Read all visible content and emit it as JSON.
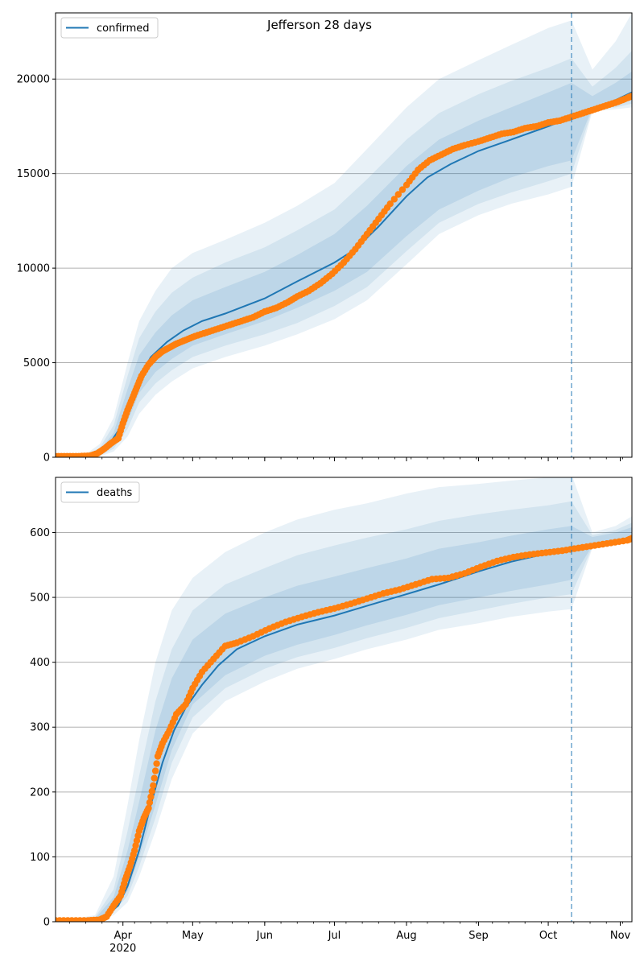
{
  "title": "Jefferson 28 days",
  "colors": {
    "model": "#1f77b4",
    "observed": "#ff7f0e",
    "band": "#1f77b4",
    "grid": "#b0b0b0"
  },
  "chart_data": [
    {
      "type": "line",
      "title": "Jefferson 28 days",
      "legend": [
        "confirmed"
      ],
      "legend_placement": "top-left",
      "grid": "horizontal",
      "xlabel": "",
      "ylabel": "",
      "ylim": [
        0,
        23500
      ],
      "yticks": [
        0,
        5000,
        10000,
        15000,
        20000
      ],
      "xlim": [
        "2020-03-03",
        "2020-11-06"
      ],
      "xticks": [
        {
          "date": "2020-04-01",
          "label": "Apr"
        },
        {
          "date": "2020-05-01",
          "label": "May"
        },
        {
          "date": "2020-06-01",
          "label": "Jun"
        },
        {
          "date": "2020-07-01",
          "label": "Jul"
        },
        {
          "date": "2020-08-01",
          "label": "Aug"
        },
        {
          "date": "2020-09-01",
          "label": "Sep"
        },
        {
          "date": "2020-10-01",
          "label": "Oct"
        },
        {
          "date": "2020-11-01",
          "label": "Nov"
        }
      ],
      "year_label": "",
      "forecast_start": "2020-10-11",
      "model": {
        "name": "confirmed",
        "x": [
          "2020-03-03",
          "2020-03-13",
          "2020-03-20",
          "2020-03-25",
          "2020-03-30",
          "2020-04-03",
          "2020-04-08",
          "2020-04-13",
          "2020-04-20",
          "2020-04-27",
          "2020-05-05",
          "2020-05-15",
          "2020-06-01",
          "2020-06-15",
          "2020-07-01",
          "2020-07-10",
          "2020-07-20",
          "2020-08-01",
          "2020-08-10",
          "2020-08-20",
          "2020-09-01",
          "2020-09-15",
          "2020-10-01",
          "2020-10-11",
          "2020-10-25",
          "2020-11-06"
        ],
        "y": [
          0,
          10,
          150,
          500,
          1400,
          2800,
          4200,
          5300,
          6100,
          6700,
          7200,
          7600,
          8400,
          9300,
          10300,
          11000,
          12200,
          13800,
          14800,
          15500,
          16200,
          16800,
          17500,
          18000,
          18600,
          19300
        ]
      },
      "bands": [
        {
          "x": [
            "2020-03-03",
            "2020-03-15",
            "2020-03-22",
            "2020-03-28",
            "2020-04-03",
            "2020-04-08",
            "2020-04-15",
            "2020-04-22",
            "2020-05-01",
            "2020-05-15",
            "2020-06-01",
            "2020-06-15",
            "2020-07-01",
            "2020-07-15",
            "2020-08-01",
            "2020-08-15",
            "2020-09-01",
            "2020-09-15",
            "2020-10-01",
            "2020-10-11",
            "2020-10-20",
            "2020-10-30",
            "2020-11-06"
          ],
          "lo": [
            0,
            0,
            50,
            300,
            1100,
            2300,
            3300,
            4000,
            4700,
            5300,
            5900,
            6500,
            7300,
            8300,
            10200,
            11800,
            12800,
            13400,
            13900,
            14300,
            18300,
            18400,
            18500
          ],
          "hi": [
            0,
            80,
            700,
            2100,
            5000,
            7200,
            8800,
            10000,
            10800,
            11500,
            12400,
            13300,
            14500,
            16300,
            18500,
            20000,
            21000,
            21800,
            22700,
            23100,
            20500,
            22000,
            23500
          ]
        },
        {
          "x": [
            "2020-03-03",
            "2020-03-15",
            "2020-03-22",
            "2020-03-28",
            "2020-04-03",
            "2020-04-08",
            "2020-04-15",
            "2020-04-22",
            "2020-05-01",
            "2020-05-15",
            "2020-06-01",
            "2020-06-15",
            "2020-07-01",
            "2020-07-15",
            "2020-08-01",
            "2020-08-15",
            "2020-09-01",
            "2020-09-15",
            "2020-10-01",
            "2020-10-11",
            "2020-10-20",
            "2020-10-30",
            "2020-11-06"
          ],
          "lo": [
            0,
            0,
            80,
            450,
            1500,
            2900,
            3900,
            4600,
            5300,
            5900,
            6500,
            7100,
            8000,
            9000,
            10900,
            12400,
            13400,
            14000,
            14600,
            15000,
            18400,
            18500,
            18700
          ],
          "hi": [
            0,
            60,
            500,
            1700,
            4300,
            6300,
            7700,
            8700,
            9500,
            10300,
            11100,
            12000,
            13100,
            14700,
            16800,
            18200,
            19200,
            19900,
            20600,
            21100,
            19600,
            20600,
            21500
          ]
        },
        {
          "x": [
            "2020-03-03",
            "2020-03-15",
            "2020-03-22",
            "2020-03-28",
            "2020-04-03",
            "2020-04-08",
            "2020-04-15",
            "2020-04-22",
            "2020-05-01",
            "2020-05-15",
            "2020-06-01",
            "2020-06-15",
            "2020-07-01",
            "2020-07-15",
            "2020-08-01",
            "2020-08-15",
            "2020-09-01",
            "2020-09-15",
            "2020-10-01",
            "2020-10-11",
            "2020-10-20",
            "2020-10-30",
            "2020-11-06"
          ],
          "lo": [
            0,
            0,
            110,
            600,
            1900,
            3400,
            4500,
            5200,
            5900,
            6500,
            7200,
            7900,
            8800,
            9800,
            11700,
            13100,
            14100,
            14800,
            15400,
            15700,
            18500,
            18700,
            18900
          ],
          "hi": [
            0,
            40,
            350,
            1300,
            3600,
            5400,
            6600,
            7500,
            8300,
            9000,
            9800,
            10700,
            11800,
            13300,
            15400,
            16800,
            17800,
            18500,
            19300,
            19800,
            19100,
            19800,
            20400
          ]
        }
      ],
      "observed": {
        "name": "observed",
        "x": [
          "2020-03-03",
          "2020-03-08",
          "2020-03-13",
          "2020-03-18",
          "2020-03-21",
          "2020-03-24",
          "2020-03-27",
          "2020-03-30",
          "2020-04-01",
          "2020-04-03",
          "2020-04-05",
          "2020-04-07",
          "2020-04-09",
          "2020-04-12",
          "2020-04-15",
          "2020-04-18",
          "2020-04-21",
          "2020-04-24",
          "2020-04-28",
          "2020-05-02",
          "2020-05-07",
          "2020-05-12",
          "2020-05-17",
          "2020-05-22",
          "2020-05-27",
          "2020-06-01",
          "2020-06-06",
          "2020-06-11",
          "2020-06-15",
          "2020-06-20",
          "2020-06-25",
          "2020-06-30",
          "2020-07-05",
          "2020-07-10",
          "2020-07-15",
          "2020-07-20",
          "2020-07-25",
          "2020-08-01",
          "2020-08-06",
          "2020-08-11",
          "2020-08-16",
          "2020-08-21",
          "2020-08-26",
          "2020-09-01",
          "2020-09-06",
          "2020-09-11",
          "2020-09-16",
          "2020-09-21",
          "2020-09-26",
          "2020-10-01",
          "2020-10-06",
          "2020-10-11",
          "2020-10-16",
          "2020-10-21",
          "2020-10-26",
          "2020-10-31",
          "2020-11-04",
          "2020-11-06"
        ],
        "y": [
          50,
          50,
          50,
          80,
          200,
          450,
          750,
          1000,
          1800,
          2500,
          3100,
          3700,
          4300,
          4900,
          5300,
          5600,
          5800,
          6000,
          6200,
          6400,
          6600,
          6800,
          7000,
          7200,
          7400,
          7700,
          7900,
          8200,
          8500,
          8800,
          9200,
          9700,
          10300,
          11000,
          11800,
          12600,
          13400,
          14400,
          15200,
          15700,
          16000,
          16300,
          16500,
          16700,
          16900,
          17100,
          17200,
          17400,
          17500,
          17700,
          17800,
          18000,
          18200,
          18400,
          18600,
          18800,
          19000,
          19100
        ]
      }
    },
    {
      "type": "line",
      "title": "",
      "legend": [
        "deaths"
      ],
      "legend_placement": "top-left",
      "grid": "horizontal",
      "xlabel": "",
      "ylabel": "",
      "ylim": [
        0,
        685
      ],
      "yticks": [
        0,
        100,
        200,
        300,
        400,
        500,
        600
      ],
      "xlim": [
        "2020-03-03",
        "2020-11-06"
      ],
      "xticks": [
        {
          "date": "2020-04-01",
          "label": "Apr"
        },
        {
          "date": "2020-05-01",
          "label": "May"
        },
        {
          "date": "2020-06-01",
          "label": "Jun"
        },
        {
          "date": "2020-07-01",
          "label": "Jul"
        },
        {
          "date": "2020-08-01",
          "label": "Aug"
        },
        {
          "date": "2020-09-01",
          "label": "Sep"
        },
        {
          "date": "2020-10-01",
          "label": "Oct"
        },
        {
          "date": "2020-11-01",
          "label": "Nov"
        }
      ],
      "year_label": "2020",
      "forecast_start": "2020-10-11",
      "model": {
        "name": "deaths",
        "x": [
          "2020-03-03",
          "2020-03-20",
          "2020-03-25",
          "2020-03-30",
          "2020-04-03",
          "2020-04-08",
          "2020-04-13",
          "2020-04-18",
          "2020-04-23",
          "2020-04-28",
          "2020-05-05",
          "2020-05-12",
          "2020-05-20",
          "2020-06-01",
          "2020-06-15",
          "2020-07-01",
          "2020-07-15",
          "2020-08-01",
          "2020-08-15",
          "2020-09-01",
          "2020-09-15",
          "2020-10-01",
          "2020-10-11",
          "2020-10-25",
          "2020-11-06"
        ],
        "y": [
          0,
          2,
          10,
          25,
          55,
          110,
          180,
          245,
          295,
          330,
          365,
          395,
          420,
          440,
          458,
          472,
          487,
          505,
          520,
          540,
          555,
          568,
          575,
          582,
          590
        ]
      },
      "bands": [
        {
          "x": [
            "2020-03-03",
            "2020-03-20",
            "2020-03-28",
            "2020-04-03",
            "2020-04-08",
            "2020-04-15",
            "2020-04-22",
            "2020-05-01",
            "2020-05-15",
            "2020-06-01",
            "2020-06-15",
            "2020-07-01",
            "2020-07-15",
            "2020-08-01",
            "2020-08-15",
            "2020-09-01",
            "2020-09-15",
            "2020-10-01",
            "2020-10-11",
            "2020-10-20",
            "2020-10-30",
            "2020-11-06"
          ],
          "lo": [
            0,
            0,
            10,
            30,
            70,
            140,
            220,
            290,
            340,
            370,
            390,
            405,
            420,
            435,
            450,
            460,
            470,
            478,
            482,
            576,
            582,
            585
          ],
          "hi": [
            0,
            10,
            70,
            180,
            280,
            400,
            480,
            530,
            570,
            600,
            620,
            635,
            645,
            660,
            670,
            675,
            680,
            685,
            690,
            600,
            610,
            625
          ]
        },
        {
          "x": [
            "2020-03-03",
            "2020-03-20",
            "2020-03-28",
            "2020-04-03",
            "2020-04-08",
            "2020-04-15",
            "2020-04-22",
            "2020-05-01",
            "2020-05-15",
            "2020-06-01",
            "2020-06-15",
            "2020-07-01",
            "2020-07-15",
            "2020-08-01",
            "2020-08-15",
            "2020-09-01",
            "2020-09-15",
            "2020-10-01",
            "2020-10-11",
            "2020-10-20",
            "2020-10-30",
            "2020-11-06"
          ],
          "lo": [
            0,
            1,
            15,
            40,
            85,
            160,
            245,
            315,
            360,
            390,
            408,
            422,
            437,
            453,
            468,
            480,
            490,
            500,
            505,
            578,
            584,
            587
          ],
          "hi": [
            0,
            7,
            50,
            140,
            225,
            340,
            420,
            480,
            520,
            545,
            565,
            580,
            592,
            605,
            618,
            628,
            635,
            642,
            648,
            596,
            604,
            615
          ]
        },
        {
          "x": [
            "2020-03-03",
            "2020-03-20",
            "2020-03-28",
            "2020-04-03",
            "2020-04-08",
            "2020-04-15",
            "2020-04-22",
            "2020-05-01",
            "2020-05-15",
            "2020-06-01",
            "2020-06-15",
            "2020-07-01",
            "2020-07-15",
            "2020-08-01",
            "2020-08-15",
            "2020-09-01",
            "2020-09-15",
            "2020-10-01",
            "2020-10-11",
            "2020-10-20",
            "2020-10-30",
            "2020-11-06"
          ],
          "lo": [
            0,
            1,
            18,
            48,
            100,
            180,
            265,
            335,
            380,
            410,
            427,
            442,
            457,
            473,
            488,
            500,
            510,
            520,
            527,
            580,
            586,
            589
          ],
          "hi": [
            0,
            5,
            38,
            110,
            185,
            295,
            375,
            435,
            475,
            500,
            518,
            532,
            545,
            560,
            575,
            585,
            595,
            605,
            610,
            593,
            600,
            608
          ]
        }
      ],
      "observed": {
        "name": "observed",
        "x": [
          "2020-03-03",
          "2020-03-10",
          "2020-03-17",
          "2020-03-22",
          "2020-03-25",
          "2020-03-28",
          "2020-03-31",
          "2020-04-02",
          "2020-04-04",
          "2020-04-06",
          "2020-04-08",
          "2020-04-10",
          "2020-04-12",
          "2020-04-14",
          "2020-04-16",
          "2020-04-18",
          "2020-04-21",
          "2020-04-24",
          "2020-04-28",
          "2020-05-01",
          "2020-05-05",
          "2020-05-10",
          "2020-05-15",
          "2020-05-20",
          "2020-05-27",
          "2020-06-03",
          "2020-06-10",
          "2020-06-17",
          "2020-06-24",
          "2020-07-01",
          "2020-07-08",
          "2020-07-15",
          "2020-07-22",
          "2020-07-29",
          "2020-08-05",
          "2020-08-12",
          "2020-08-19",
          "2020-08-26",
          "2020-09-02",
          "2020-09-09",
          "2020-09-16",
          "2020-09-23",
          "2020-09-30",
          "2020-10-07",
          "2020-10-14",
          "2020-10-21",
          "2020-10-28",
          "2020-11-04",
          "2020-11-06"
        ],
        "y": [
          2,
          2,
          2,
          3,
          8,
          25,
          40,
          65,
          85,
          110,
          140,
          160,
          175,
          210,
          255,
          275,
          295,
          320,
          335,
          360,
          385,
          405,
          425,
          430,
          440,
          452,
          462,
          470,
          477,
          483,
          490,
          498,
          506,
          512,
          520,
          528,
          530,
          537,
          547,
          556,
          562,
          566,
          569,
          572,
          576,
          580,
          584,
          588,
          591
        ]
      }
    }
  ]
}
